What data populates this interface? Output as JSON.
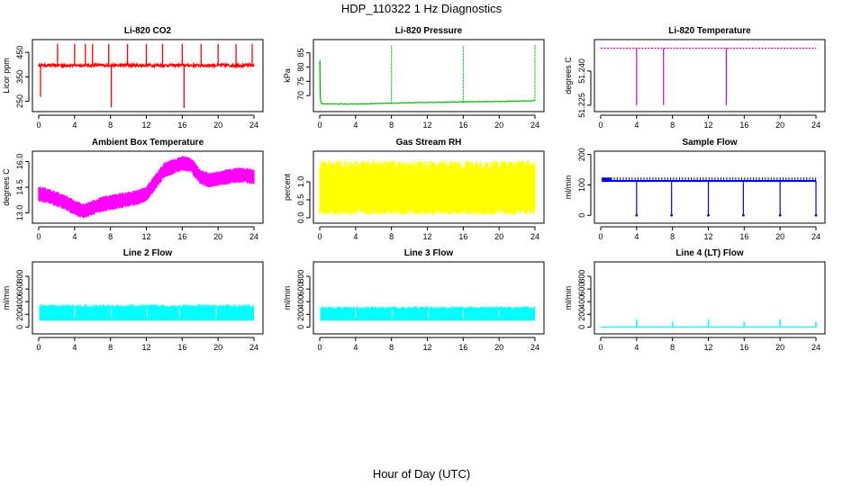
{
  "figure": {
    "title": "HDP_110322  1 Hz Diagnostics",
    "xlabel": "Hour of Day (UTC)"
  },
  "chart_data": [
    {
      "id": "co2",
      "type": "line",
      "title": "Li-820 CO2",
      "ylabel": "Licor ppm",
      "color": "#ff0000",
      "xlim": [
        0,
        24
      ],
      "xticks": [
        0,
        4,
        8,
        12,
        16,
        20,
        24
      ],
      "xtick_labels": [
        "0",
        "4",
        "8",
        "12",
        "16",
        "20",
        "24"
      ],
      "ylim": [
        215,
        495
      ],
      "yticks": [
        250,
        350,
        450
      ],
      "ytick_labels": [
        "250",
        "350",
        "450"
      ],
      "baseline": 397,
      "noise": 6,
      "spikes": [
        [
          0.2,
          268
        ],
        [
          2.1,
          485
        ],
        [
          4.0,
          485
        ],
        [
          5.2,
          485
        ],
        [
          6.0,
          485
        ],
        [
          7.8,
          485
        ],
        [
          8.1,
          225
        ],
        [
          9.9,
          485
        ],
        [
          12.0,
          485
        ],
        [
          13.8,
          485
        ],
        [
          16.0,
          485
        ],
        [
          16.2,
          222
        ],
        [
          18.1,
          485
        ],
        [
          20.0,
          485
        ],
        [
          22.0,
          485
        ],
        [
          23.8,
          485
        ]
      ]
    },
    {
      "id": "pressure",
      "type": "line",
      "title": "Li-820 Pressure",
      "ylabel": "kPa",
      "color": "#00bb00",
      "xlim": [
        0,
        24
      ],
      "xticks": [
        0,
        4,
        8,
        12,
        16,
        20,
        24
      ],
      "xtick_labels": [
        "0",
        "4",
        "8",
        "12",
        "16",
        "20",
        "24"
      ],
      "ylim": [
        65,
        89
      ],
      "yticks": [
        70,
        75,
        80,
        85
      ],
      "ytick_labels": [
        "70",
        "75",
        "80",
        "85"
      ],
      "series_x": [
        0,
        0.05,
        0.1,
        0.2,
        4,
        8,
        12,
        16,
        20,
        24
      ],
      "series_y": [
        82,
        70,
        67.5,
        67.1,
        67.0,
        67.3,
        67.6,
        67.8,
        67.9,
        68.2
      ],
      "spikes": [
        [
          0.05,
          82.5
        ],
        [
          8.0,
          87.5
        ],
        [
          16.0,
          87.6
        ],
        [
          24.0,
          88
        ]
      ]
    },
    {
      "id": "licor_temp",
      "type": "line",
      "title": "Li-820 Temperature",
      "ylabel": "degrees C",
      "color": "#cc00cc",
      "xlim": [
        0,
        24
      ],
      "xticks": [
        0,
        4,
        8,
        12,
        16,
        20,
        24
      ],
      "xtick_labels": [
        "0",
        "4",
        "8",
        "12",
        "16",
        "20",
        "24"
      ],
      "ylim": [
        51.223,
        51.253
      ],
      "yticks": [
        51.225,
        51.24
      ],
      "ytick_labels": [
        "51.225",
        "51.240"
      ],
      "baseline": 51.25,
      "spikes": [
        [
          4.0,
          51.225
        ],
        [
          7.0,
          51.225
        ],
        [
          14.0,
          51.225
        ]
      ]
    },
    {
      "id": "box_temp",
      "type": "area",
      "title": "Ambient Box Temperature",
      "ylabel": "degrees C",
      "color": "#ff00ff",
      "xlim": [
        0,
        24
      ],
      "xticks": [
        0,
        4,
        8,
        12,
        16,
        20,
        24
      ],
      "xtick_labels": [
        "0",
        "4",
        "8",
        "12",
        "16",
        "20",
        "24"
      ],
      "ylim": [
        12.5,
        16.5
      ],
      "yticks": [
        13.0,
        14.5,
        16.0
      ],
      "ytick_labels": [
        "13.0",
        "14.5",
        "16.0"
      ],
      "center_x": [
        0,
        1,
        2,
        3,
        4,
        5,
        6,
        7,
        8,
        9,
        10,
        11,
        12,
        13,
        14,
        15,
        16,
        17,
        18,
        19,
        20,
        21,
        22,
        23,
        24
      ],
      "center_y": [
        14.1,
        14.0,
        13.8,
        13.6,
        13.3,
        13.1,
        13.3,
        13.5,
        13.6,
        13.7,
        13.8,
        13.9,
        14.1,
        14.8,
        15.5,
        15.7,
        15.9,
        15.8,
        15.1,
        14.9,
        15.0,
        15.1,
        15.2,
        15.2,
        15.1
      ],
      "band": 0.45
    },
    {
      "id": "rh",
      "type": "area",
      "title": "Gas Stream RH",
      "ylabel": "percent",
      "color": "#ffff00",
      "xlim": [
        0,
        24
      ],
      "xticks": [
        0,
        4,
        8,
        12,
        16,
        20,
        24
      ],
      "xtick_labels": [
        "0",
        "4",
        "8",
        "12",
        "16",
        "20",
        "24"
      ],
      "ylim": [
        -0.1,
        1.8
      ],
      "yticks": [
        0.0,
        0.5,
        1.0
      ],
      "ytick_labels": [
        "0.0",
        "0.5",
        "1.0"
      ],
      "low": 0.2,
      "high": 1.6
    },
    {
      "id": "sample_flow",
      "type": "line",
      "title": "Sample Flow",
      "ylabel": "ml/min",
      "color": "#0000ee",
      "xlim": [
        0,
        24
      ],
      "xticks": [
        0,
        4,
        8,
        12,
        16,
        20,
        24
      ],
      "xtick_labels": [
        "0",
        "4",
        "8",
        "12",
        "16",
        "20",
        "24"
      ],
      "ylim": [
        -20,
        205
      ],
      "yticks": [
        0,
        100,
        200
      ],
      "ytick_labels": [
        "0",
        "100",
        "200"
      ],
      "baseline": 113,
      "upper": 125,
      "spikes": [
        [
          4.0,
          0
        ],
        [
          7.9,
          0
        ],
        [
          12.0,
          0
        ],
        [
          15.9,
          0
        ],
        [
          20.0,
          0
        ],
        [
          24.0,
          0
        ]
      ]
    },
    {
      "id": "line2",
      "type": "area",
      "title": "Line 2 Flow",
      "ylabel": "ml/min",
      "color": "#00ffff",
      "xlim": [
        0,
        24
      ],
      "xticks": [
        0,
        4,
        8,
        12,
        16,
        20,
        24
      ],
      "xtick_labels": [
        "0",
        "4",
        "8",
        "12",
        "16",
        "20",
        "24"
      ],
      "ylim": [
        -80,
        1000
      ],
      "yticks": [
        0,
        200,
        400,
        600,
        800
      ],
      "ytick_labels": [
        "0",
        "200",
        "400",
        "600",
        "800"
      ],
      "low": 100,
      "high": 320,
      "gaps": [
        4.0,
        8.1,
        12.1,
        15.7,
        19.8
      ]
    },
    {
      "id": "line3",
      "type": "area",
      "title": "Line 3 Flow",
      "ylabel": "ml/min",
      "color": "#00ffff",
      "xlim": [
        0,
        24
      ],
      "xticks": [
        0,
        4,
        8,
        12,
        16,
        20,
        24
      ],
      "xtick_labels": [
        "0",
        "4",
        "8",
        "12",
        "16",
        "20",
        "24"
      ],
      "ylim": [
        -80,
        1000
      ],
      "yticks": [
        0,
        200,
        400,
        600,
        800
      ],
      "ytick_labels": [
        "0",
        "200",
        "400",
        "600",
        "800"
      ],
      "low": 100,
      "high": 290,
      "gaps": [
        4.0,
        8.1,
        12.1,
        16.0,
        20.0
      ]
    },
    {
      "id": "line4",
      "type": "line",
      "title": "Line 4 (LT) Flow",
      "ylabel": "ml/min",
      "color": "#00ffff",
      "xlim": [
        0,
        24
      ],
      "xticks": [
        0,
        4,
        8,
        12,
        16,
        20,
        24
      ],
      "xtick_labels": [
        "0",
        "4",
        "8",
        "12",
        "16",
        "20",
        "24"
      ],
      "ylim": [
        -80,
        1000
      ],
      "yticks": [
        0,
        200,
        400,
        600,
        800
      ],
      "ytick_labels": [
        "0",
        "200",
        "400",
        "600",
        "800"
      ],
      "baseline": 0,
      "spikes": [
        [
          4.0,
          120
        ],
        [
          8.0,
          85
        ],
        [
          12.0,
          120
        ],
        [
          16.0,
          85
        ],
        [
          20.0,
          120
        ],
        [
          24.0,
          80
        ]
      ]
    }
  ]
}
